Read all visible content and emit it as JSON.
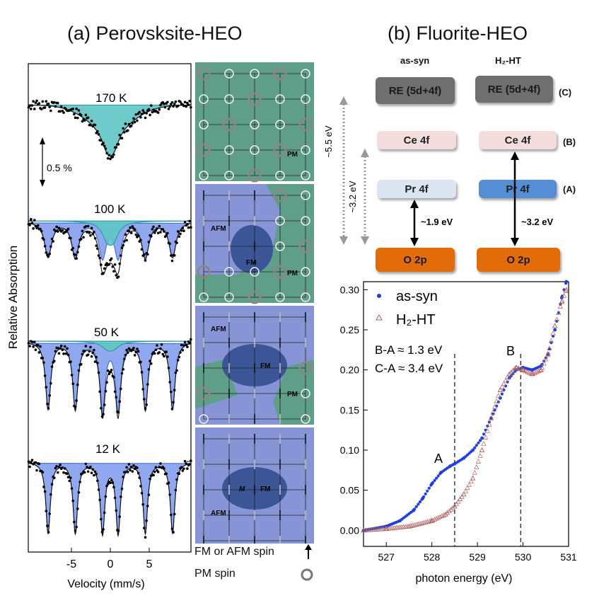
{
  "panel_a": {
    "title": "(a) Perovsksite-HEO",
    "ylabel": "Relative Absorption",
    "xlabel": "Velocity (mm/s)",
    "scale_label": "0.5 %",
    "xticks": [
      "-5",
      "0",
      "5"
    ],
    "spectra": [
      {
        "temperature": "170 K",
        "type": "paramagnetic doublet"
      },
      {
        "temperature": "100 K",
        "type": "sextet + doublet"
      },
      {
        "temperature": "50 K",
        "type": "sextet + doublet"
      },
      {
        "temperature": "12 K",
        "type": "sextet"
      }
    ],
    "spin_labels": {
      "afm": "AFM",
      "fm": "FM",
      "pm": "PM",
      "moment": "M"
    },
    "legend": {
      "fm_afm_spin": "FM or AFM spin",
      "pm_spin": "PM spin"
    },
    "colors": {
      "doublet": "#5fc4c4",
      "sextet": "#8fa8ef",
      "pm_region": "#5f9f8a",
      "afm_region": "#8795d6",
      "fm_region": "#3b5597"
    }
  },
  "panel_b": {
    "title": "(b) Fluorite-HEO",
    "columns": {
      "left": "as-syn",
      "right": "H₂-HT"
    },
    "levels": {
      "re": "RE (5d+4f)",
      "ce": "Ce 4f",
      "pr": "Pr 4f",
      "o": "O 2p"
    },
    "level_tags": {
      "c": "(C)",
      "b": "(B)",
      "a": "(A)"
    },
    "gaps": {
      "outer": "~5.5 eV",
      "inner": "~3.2 eV",
      "left_arrow": "~1.9 eV",
      "right_arrow": "~3.2 eV"
    },
    "colors": {
      "re": "#6f6f6f",
      "ce": "#f6dddd",
      "pr_left": "#dce6f2",
      "pr_right": "#558ed5",
      "o": "#e36c0a"
    }
  },
  "chart_data": {
    "type": "scatter",
    "xlabel": "photon energy (eV)",
    "ylabel": "",
    "xlim": [
      526.5,
      531.0
    ],
    "ylim": [
      -0.02,
      0.31
    ],
    "xticks": [
      527,
      528,
      529,
      530,
      531
    ],
    "yticks": [
      0.0,
      0.05,
      0.1,
      0.15,
      0.2,
      0.25,
      0.3
    ],
    "legend_position": "top-left",
    "annotations": [
      "B-A ≈ 1.3 eV",
      "C-A ≈ 3.4 eV",
      "A",
      "B"
    ],
    "vlines": [
      528.5,
      529.95
    ],
    "series": [
      {
        "name": "as-syn",
        "marker": "filled circle",
        "color": "#1f3fe0",
        "x": [
          526.5,
          527.0,
          527.3,
          527.6,
          527.8,
          528.0,
          528.2,
          528.4,
          528.5,
          528.7,
          528.9,
          529.1,
          529.3,
          529.5,
          529.7,
          529.85,
          530.0,
          530.2,
          530.4,
          530.55,
          530.7,
          530.85,
          530.95
        ],
        "y": [
          0.0,
          0.005,
          0.012,
          0.025,
          0.04,
          0.058,
          0.072,
          0.08,
          0.083,
          0.09,
          0.1,
          0.115,
          0.14,
          0.165,
          0.19,
          0.2,
          0.203,
          0.2,
          0.205,
          0.22,
          0.25,
          0.29,
          0.31
        ]
      },
      {
        "name": "H₂-HT",
        "marker": "open triangle",
        "color": "#b06060",
        "x": [
          526.5,
          527.0,
          527.5,
          528.0,
          528.3,
          528.5,
          528.7,
          528.9,
          529.1,
          529.3,
          529.5,
          529.7,
          529.85,
          530.0,
          530.2,
          530.4,
          530.55,
          530.7,
          530.85,
          530.95
        ],
        "y": [
          0.0,
          0.002,
          0.005,
          0.012,
          0.02,
          0.03,
          0.045,
          0.065,
          0.1,
          0.14,
          0.175,
          0.195,
          0.203,
          0.2,
          0.195,
          0.2,
          0.22,
          0.255,
          0.285,
          0.3
        ]
      }
    ]
  }
}
